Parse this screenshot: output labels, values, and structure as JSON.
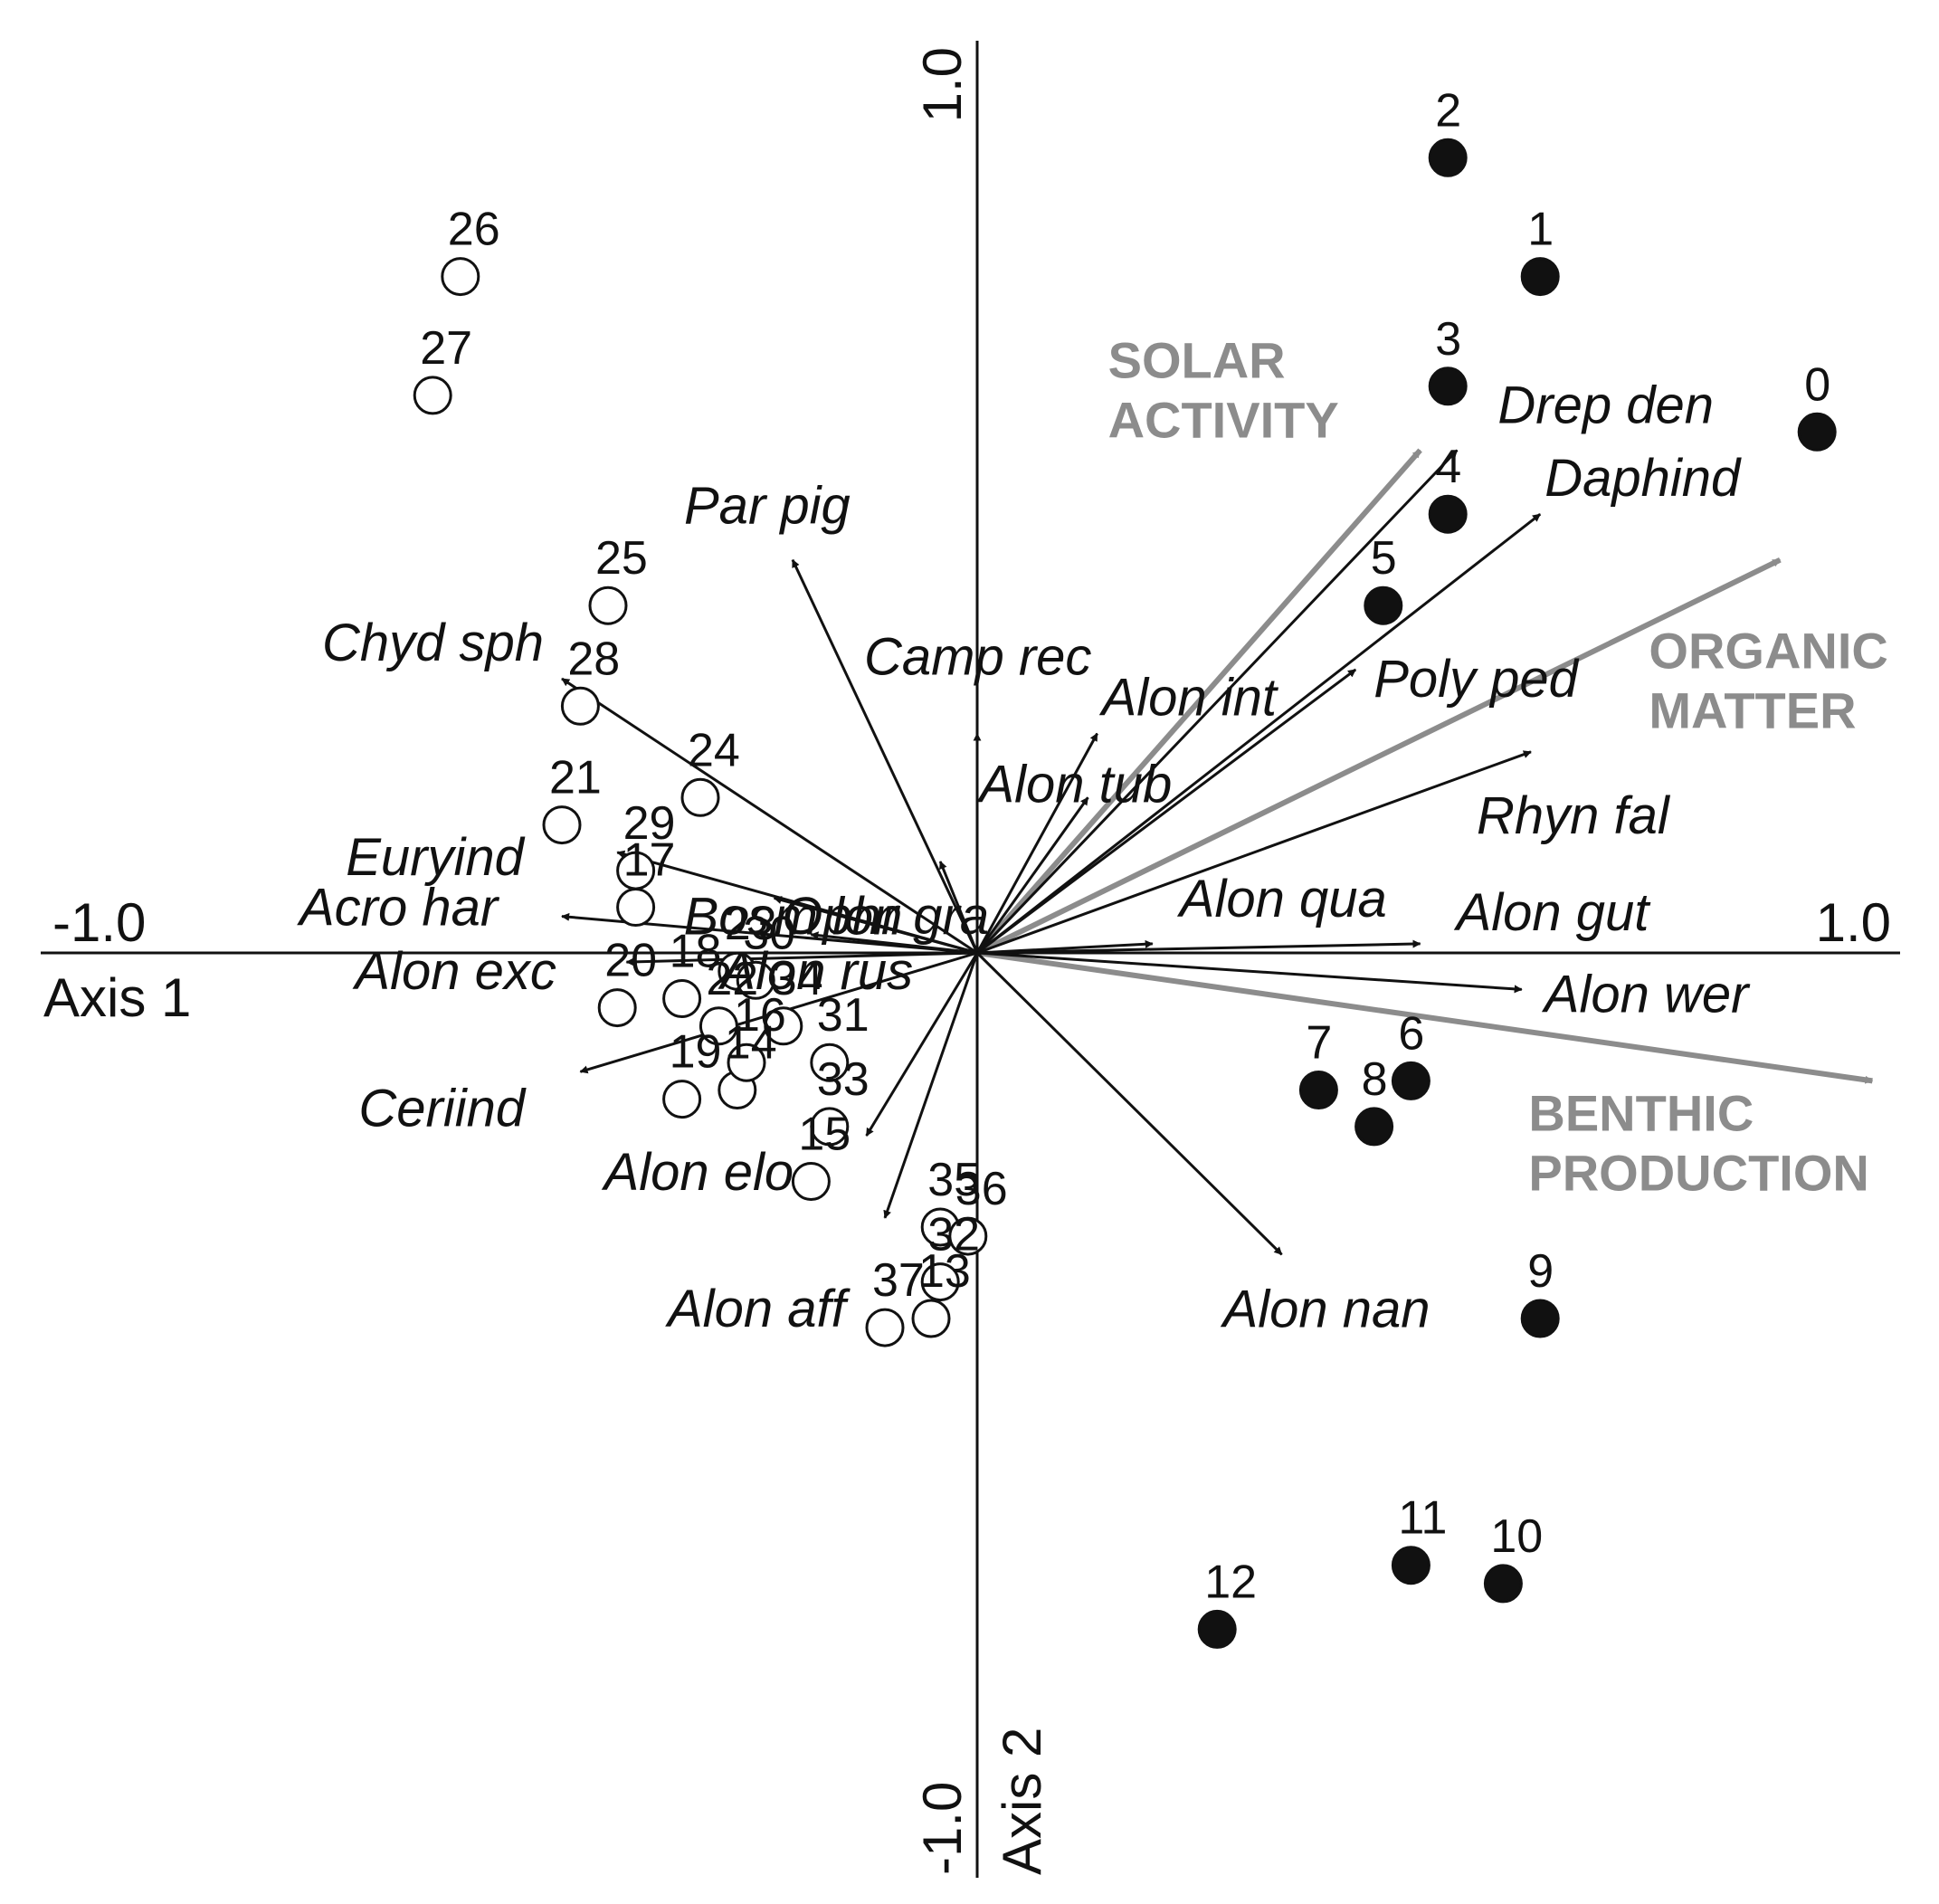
{
  "chart_data": {
    "type": "scatter",
    "title": "",
    "xlabel": "Axis 1",
    "ylabel": "Axis 2",
    "xlim": [
      -1.0,
      1.0
    ],
    "ylim": [
      -1.0,
      1.0
    ],
    "x_tick_labels": [
      "-1.0",
      "1.0"
    ],
    "y_tick_labels": [
      "-1.0",
      "1.0"
    ],
    "grid": false,
    "legend": "none",
    "colors": {
      "species_arrow": "#111111",
      "env_arrow": "#8c8c8c",
      "site_filled": "#111111",
      "site_open": "#ffffff"
    },
    "species": [
      {
        "name": "Drep den",
        "x": 0.52,
        "y": 0.55
      },
      {
        "name": "Daphind",
        "x": 0.61,
        "y": 0.48
      },
      {
        "name": "Poly ped",
        "x": 0.41,
        "y": 0.31
      },
      {
        "name": "Rhyn fal",
        "x": 0.6,
        "y": 0.22
      },
      {
        "name": "Alon int",
        "x": 0.13,
        "y": 0.24
      },
      {
        "name": "Alon tub",
        "x": 0.12,
        "y": 0.17
      },
      {
        "name": "Camp rec",
        "x": 0.0,
        "y": 0.24
      },
      {
        "name": "Ophr gra",
        "x": -0.04,
        "y": 0.1
      },
      {
        "name": "Par pig",
        "x": -0.2,
        "y": 0.43
      },
      {
        "name": "Chyd sph",
        "x": -0.45,
        "y": 0.3
      },
      {
        "name": "Bosm lon",
        "x": -0.22,
        "y": 0.06
      },
      {
        "name": "Euryind",
        "x": -0.39,
        "y": 0.11
      },
      {
        "name": "Acro har",
        "x": -0.45,
        "y": 0.04
      },
      {
        "name": "Alon exc",
        "x": -0.38,
        "y": -0.01
      },
      {
        "name": "Alon rus",
        "x": -0.18,
        "y": 0.02
      },
      {
        "name": "Ceriind",
        "x": -0.43,
        "y": -0.13
      },
      {
        "name": "Alon elo",
        "x": -0.12,
        "y": -0.2
      },
      {
        "name": "Alon aff",
        "x": -0.1,
        "y": -0.29
      },
      {
        "name": "Alon qua",
        "x": 0.19,
        "y": 0.01
      },
      {
        "name": "Alon gut",
        "x": 0.48,
        "y": 0.01
      },
      {
        "name": "Alon wer",
        "x": 0.59,
        "y": -0.04
      },
      {
        "name": "Alon nan",
        "x": 0.33,
        "y": -0.33
      }
    ],
    "environmental": [
      {
        "name": "SOLAR ACTIVITY",
        "line1": "SOLAR",
        "line2": "ACTIVITY",
        "x": 0.48,
        "y": 0.55
      },
      {
        "name": "ORGANIC MATTER",
        "line1": "ORGANIC",
        "line2": "MATTER",
        "x": 0.87,
        "y": 0.43
      },
      {
        "name": "BENTHIC PRODUCTION",
        "line1": "BENTHIC",
        "line2": "PRODUCTION",
        "x": 0.97,
        "y": -0.14
      }
    ],
    "sites_filled": [
      {
        "label": "0",
        "x": 0.91,
        "y": 0.57
      },
      {
        "label": "1",
        "x": 0.61,
        "y": 0.74
      },
      {
        "label": "2",
        "x": 0.51,
        "y": 0.87
      },
      {
        "label": "3",
        "x": 0.51,
        "y": 0.62
      },
      {
        "label": "4",
        "x": 0.51,
        "y": 0.48
      },
      {
        "label": "5",
        "x": 0.44,
        "y": 0.38
      },
      {
        "label": "6",
        "x": 0.47,
        "y": -0.14
      },
      {
        "label": "7",
        "x": 0.37,
        "y": -0.15
      },
      {
        "label": "8",
        "x": 0.43,
        "y": -0.19
      },
      {
        "label": "9",
        "x": 0.61,
        "y": -0.4
      },
      {
        "label": "10",
        "x": 0.57,
        "y": -0.69
      },
      {
        "label": "11",
        "x": 0.47,
        "y": -0.67
      },
      {
        "label": "12",
        "x": 0.26,
        "y": -0.74
      }
    ],
    "sites_open": [
      {
        "label": "13",
        "x": -0.05,
        "y": -0.4
      },
      {
        "label": "14",
        "x": -0.26,
        "y": -0.15
      },
      {
        "label": "15",
        "x": -0.18,
        "y": -0.25
      },
      {
        "label": "16",
        "x": -0.25,
        "y": -0.12
      },
      {
        "label": "17",
        "x": -0.37,
        "y": 0.05
      },
      {
        "label": "18",
        "x": -0.32,
        "y": -0.05
      },
      {
        "label": "19",
        "x": -0.32,
        "y": -0.16
      },
      {
        "label": "20",
        "x": -0.39,
        "y": -0.06
      },
      {
        "label": "21",
        "x": -0.45,
        "y": 0.14
      },
      {
        "label": "22",
        "x": -0.28,
        "y": -0.08
      },
      {
        "label": "23",
        "x": -0.26,
        "y": -0.02
      },
      {
        "label": "24",
        "x": -0.3,
        "y": 0.17
      },
      {
        "label": "25",
        "x": -0.4,
        "y": 0.38
      },
      {
        "label": "26",
        "x": -0.56,
        "y": 0.74
      },
      {
        "label": "27",
        "x": -0.59,
        "y": 0.61
      },
      {
        "label": "28",
        "x": -0.43,
        "y": 0.27
      },
      {
        "label": "29",
        "x": -0.37,
        "y": 0.09
      },
      {
        "label": "30",
        "x": -0.24,
        "y": -0.03
      },
      {
        "label": "31",
        "x": -0.16,
        "y": -0.12
      },
      {
        "label": "32",
        "x": -0.04,
        "y": -0.36
      },
      {
        "label": "33",
        "x": -0.16,
        "y": -0.19
      },
      {
        "label": "34",
        "x": -0.21,
        "y": -0.08
      },
      {
        "label": "35",
        "x": -0.04,
        "y": -0.3
      },
      {
        "label": "36",
        "x": -0.01,
        "y": -0.31
      },
      {
        "label": "37",
        "x": -0.1,
        "y": -0.41
      }
    ]
  }
}
